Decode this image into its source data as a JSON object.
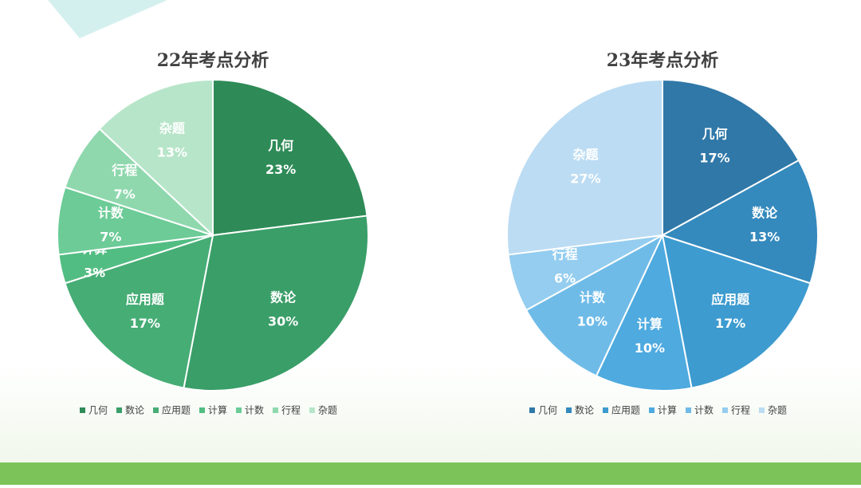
{
  "chart_data": [
    {
      "type": "pie",
      "title": "22年考点分析",
      "categories": [
        "几何",
        "数论",
        "应用题",
        "计算",
        "计数",
        "行程",
        "杂题"
      ],
      "values": [
        23,
        30,
        17,
        3,
        7,
        7,
        13
      ],
      "value_labels": [
        "23%",
        "30%",
        "17%",
        "3%",
        "7%",
        "7%",
        "13%"
      ],
      "colors": [
        "#2e8b57",
        "#3a9e68",
        "#46ad75",
        "#52bd82",
        "#6ccb96",
        "#8fd8ae",
        "#b7e5c9"
      ],
      "legend": "bottom"
    },
    {
      "type": "pie",
      "title": "23年考点分析",
      "categories": [
        "几何",
        "数论",
        "应用题",
        "计算",
        "计数",
        "行程",
        "杂题"
      ],
      "values": [
        17,
        13,
        17,
        10,
        10,
        6,
        27
      ],
      "value_labels": [
        "17%",
        "13%",
        "17%",
        "10%",
        "10%",
        "6%",
        "27%"
      ],
      "colors": [
        "#2f78a8",
        "#3489bd",
        "#3d9bd0",
        "#4eaadf",
        "#6fbbe8",
        "#94cdef",
        "#bcdcf3"
      ],
      "legend": "bottom"
    }
  ]
}
